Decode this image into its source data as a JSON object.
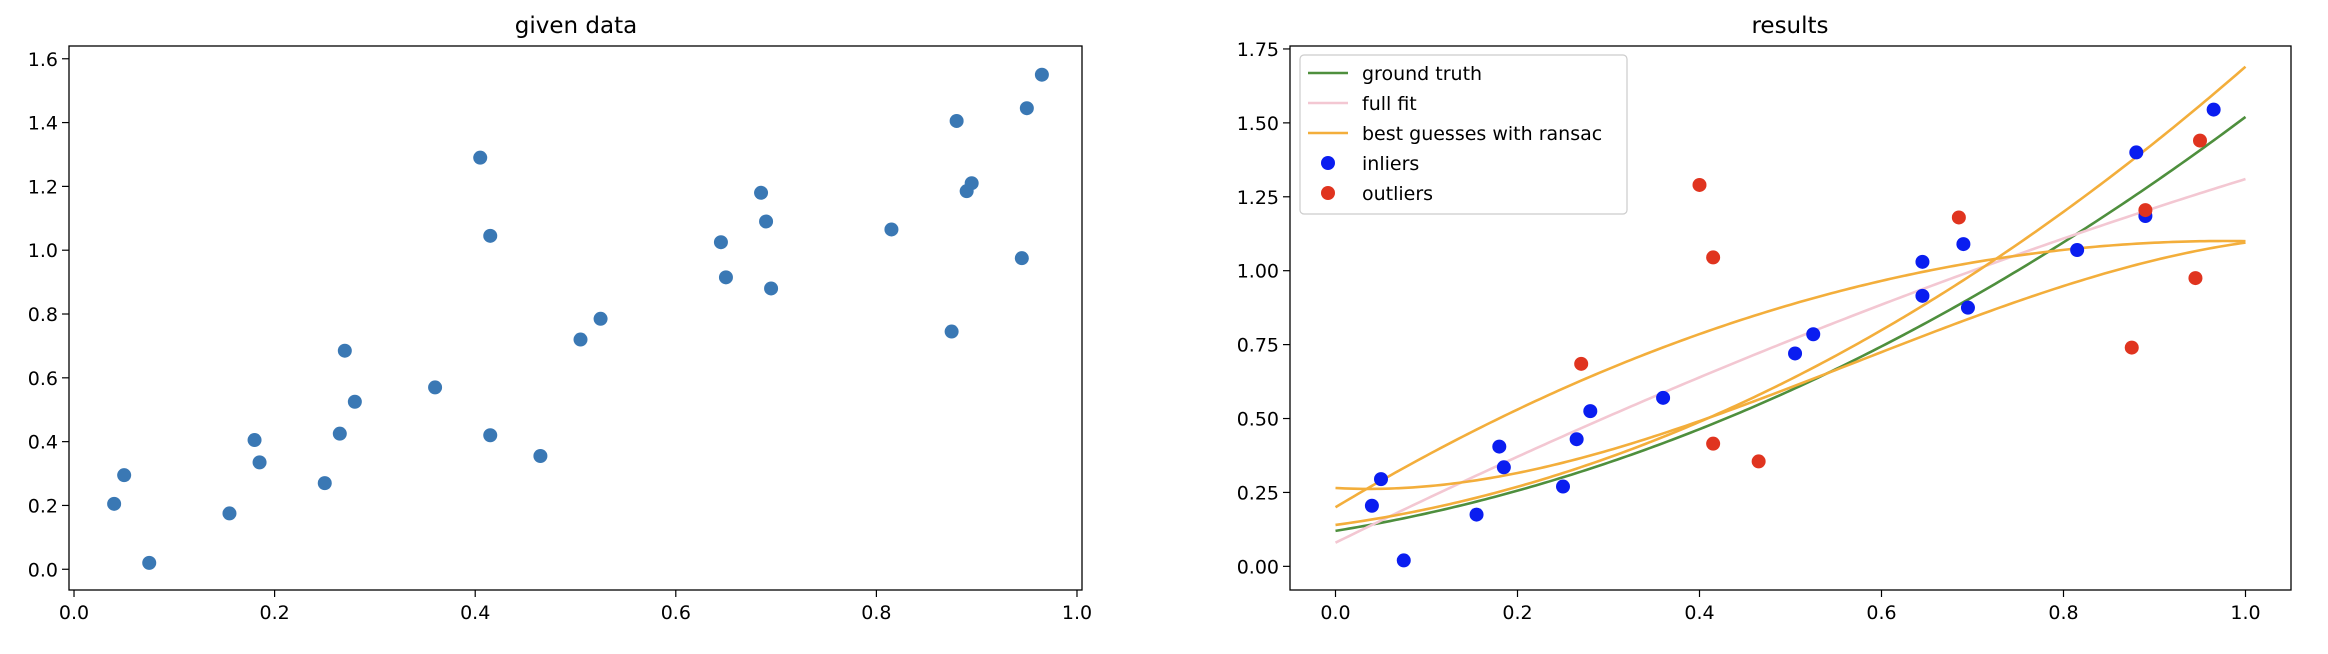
{
  "chart_data": [
    {
      "type": "scatter",
      "title": "given data",
      "xlim": [
        -0.005,
        1.005
      ],
      "ylim": [
        -0.065,
        1.64
      ],
      "xticks": [
        "0.0",
        "0.2",
        "0.4",
        "0.6",
        "0.8",
        "1.0"
      ],
      "yticks": [
        "0.0",
        "0.2",
        "0.4",
        "0.6",
        "0.8",
        "1.0",
        "1.2",
        "1.4",
        "1.6"
      ],
      "point_color": "#3a78b4",
      "points": [
        [
          0.04,
          0.205
        ],
        [
          0.05,
          0.295
        ],
        [
          0.075,
          0.02
        ],
        [
          0.155,
          0.175
        ],
        [
          0.18,
          0.405
        ],
        [
          0.185,
          0.335
        ],
        [
          0.25,
          0.27
        ],
        [
          0.265,
          0.425
        ],
        [
          0.27,
          0.685
        ],
        [
          0.28,
          0.525
        ],
        [
          0.36,
          0.57
        ],
        [
          0.405,
          1.29
        ],
        [
          0.415,
          1.045
        ],
        [
          0.415,
          0.42
        ],
        [
          0.465,
          0.355
        ],
        [
          0.505,
          0.72
        ],
        [
          0.525,
          0.785
        ],
        [
          0.645,
          1.025
        ],
        [
          0.65,
          0.915
        ],
        [
          0.685,
          1.18
        ],
        [
          0.69,
          1.09
        ],
        [
          0.695,
          0.88
        ],
        [
          0.815,
          1.065
        ],
        [
          0.875,
          0.745
        ],
        [
          0.88,
          1.405
        ],
        [
          0.89,
          1.185
        ],
        [
          0.895,
          1.21
        ],
        [
          0.945,
          0.975
        ],
        [
          0.95,
          1.445
        ],
        [
          0.965,
          1.55
        ]
      ]
    },
    {
      "type": "scatter",
      "title": "results",
      "xlim": [
        -0.05,
        1.05
      ],
      "ylim": [
        -0.08,
        1.76
      ],
      "xticks": [
        "0.0",
        "0.2",
        "0.4",
        "0.6",
        "0.8",
        "1.0"
      ],
      "yticks": [
        "0.00",
        "0.25",
        "0.50",
        "0.75",
        "1.00",
        "1.25",
        "1.50",
        "1.75"
      ],
      "legend": {
        "placement": "top-left",
        "entries": [
          {
            "label": "ground truth",
            "kind": "line",
            "color": "#4e8f3d"
          },
          {
            "label": "full fit",
            "kind": "line",
            "color": "#f3c7d2"
          },
          {
            "label": "best guesses with ransac",
            "kind": "line",
            "color": "#f3ae3b"
          },
          {
            "label": "inliers",
            "kind": "point",
            "color": "#0a1df0"
          },
          {
            "label": "outliers",
            "kind": "point",
            "color": "#e0341f"
          }
        ]
      },
      "curves": [
        {
          "name": "ground truth",
          "color": "#4e8f3d",
          "coeffs": [
            0.12,
            0.5,
            0.9
          ]
        },
        {
          "name": "full fit",
          "color": "#f3c7d2",
          "coeffs": [
            0.08,
            1.51,
            -0.28
          ]
        },
        {
          "name": "best guesses with ransac",
          "color": "#f3ae3b",
          "coeffs": [
            0.14,
            0.42,
            1.13
          ]
        },
        {
          "name": "best guesses with ransac",
          "color": "#f3ae3b",
          "coeffs": [
            0.2,
            1.84,
            -0.94
          ]
        },
        {
          "name": "best guesses with ransac",
          "color": "#f3ae3b",
          "coeffs": [
            0.265,
            -0.17,
            2.4,
            -1.4
          ]
        }
      ],
      "inliers": [
        [
          0.04,
          0.205
        ],
        [
          0.05,
          0.295
        ],
        [
          0.075,
          0.02
        ],
        [
          0.155,
          0.175
        ],
        [
          0.18,
          0.405
        ],
        [
          0.185,
          0.335
        ],
        [
          0.25,
          0.27
        ],
        [
          0.265,
          0.43
        ],
        [
          0.28,
          0.525
        ],
        [
          0.36,
          0.57
        ],
        [
          0.505,
          0.72
        ],
        [
          0.525,
          0.785
        ],
        [
          0.645,
          1.03
        ],
        [
          0.645,
          0.915
        ],
        [
          0.69,
          1.09
        ],
        [
          0.695,
          0.875
        ],
        [
          0.815,
          1.07
        ],
        [
          0.88,
          1.4
        ],
        [
          0.89,
          1.185
        ],
        [
          0.965,
          1.545
        ]
      ],
      "outliers": [
        [
          0.27,
          0.685
        ],
        [
          0.4,
          1.29
        ],
        [
          0.415,
          1.045
        ],
        [
          0.415,
          0.415
        ],
        [
          0.465,
          0.355
        ],
        [
          0.685,
          1.18
        ],
        [
          0.875,
          0.74
        ],
        [
          0.89,
          1.205
        ],
        [
          0.945,
          0.975
        ],
        [
          0.95,
          1.44
        ]
      ]
    }
  ]
}
